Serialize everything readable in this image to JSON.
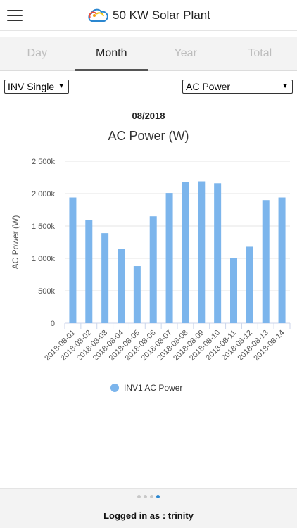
{
  "app": {
    "title": "50 KW Solar Plant"
  },
  "tabs": [
    {
      "label": "Day",
      "active": false
    },
    {
      "label": "Month",
      "active": true
    },
    {
      "label": "Year",
      "active": false
    },
    {
      "label": "Total",
      "active": false
    }
  ],
  "filters": {
    "inverter_value": "INV Single",
    "metric_value": "AC Power"
  },
  "period_label": "08/2018",
  "chart_data": {
    "type": "bar",
    "title": "AC Power (W)",
    "ylabel": "AC Power (W)",
    "xlabel": "",
    "ylim": [
      0,
      2500000
    ],
    "yticks": [
      0,
      500000,
      1000000,
      1500000,
      2000000,
      2500000
    ],
    "ytick_labels": [
      "0",
      "500k",
      "1 000k",
      "1 500k",
      "2 000k",
      "2 500k"
    ],
    "categories": [
      "2018-08-01",
      "2018-08-02",
      "2018-08-03",
      "2018-08-04",
      "2018-08-05",
      "2018-08-06",
      "2018-08-07",
      "2018-08-08",
      "2018-08-09",
      "2018-08-10",
      "2018-08-11",
      "2018-08-12",
      "2018-08-13",
      "2018-08-14"
    ],
    "series": [
      {
        "name": "INV1 AC Power",
        "color": "#7cb5ec",
        "values": [
          1940000,
          1590000,
          1390000,
          1150000,
          880000,
          1650000,
          2010000,
          2180000,
          2190000,
          2160000,
          1000000,
          1180000,
          1900000,
          1940000
        ]
      }
    ],
    "grid": true,
    "legend": "bottom-center"
  },
  "footer": {
    "logged_in_text": "Logged in as : trinity",
    "page_dots": 4,
    "active_dot": 4
  }
}
